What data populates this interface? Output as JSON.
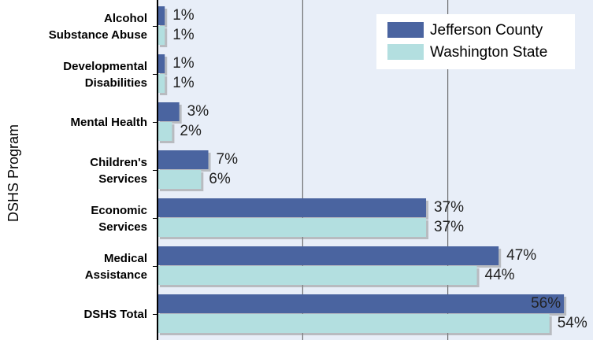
{
  "chart_data": {
    "type": "bar",
    "orientation": "horizontal",
    "y_label": "DSHS Program",
    "categories": [
      "Alcohol\nSubstance Abuse",
      "Developmental\nDisabilities",
      "Mental Health",
      "Children's\nServices",
      "Economic\nServices",
      "Medical\nAssistance",
      "DSHS Total"
    ],
    "series": [
      {
        "name": "Jefferson County",
        "color": "#4a64a0",
        "values": [
          1,
          1,
          3,
          7,
          37,
          47,
          56
        ],
        "value_labels": [
          "1%",
          "1%",
          "3%",
          "7%",
          "37%",
          "47%",
          "56%"
        ]
      },
      {
        "name": "Washington State",
        "color": "#b3dfe0",
        "values": [
          1,
          1,
          2,
          6,
          37,
          44,
          54
        ],
        "value_labels": [
          "1%",
          "1%",
          "2%",
          "6%",
          "37%",
          "44%",
          "54%"
        ]
      }
    ],
    "xlim": [
      0,
      60
    ],
    "xticks": [
      0,
      20,
      40
    ],
    "grid": true,
    "legend": "top-right"
  }
}
